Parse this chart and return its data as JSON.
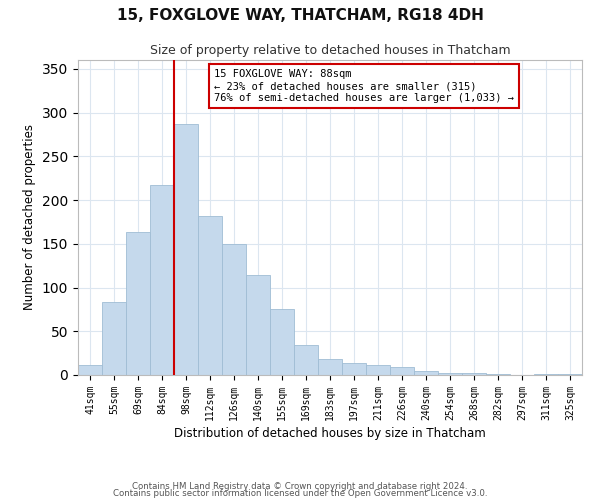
{
  "title": "15, FOXGLOVE WAY, THATCHAM, RG18 4DH",
  "subtitle": "Size of property relative to detached houses in Thatcham",
  "xlabel": "Distribution of detached houses by size in Thatcham",
  "ylabel": "Number of detached properties",
  "bar_labels": [
    "41sqm",
    "55sqm",
    "69sqm",
    "84sqm",
    "98sqm",
    "112sqm",
    "126sqm",
    "140sqm",
    "155sqm",
    "169sqm",
    "183sqm",
    "197sqm",
    "211sqm",
    "226sqm",
    "240sqm",
    "254sqm",
    "268sqm",
    "282sqm",
    "297sqm",
    "311sqm",
    "325sqm"
  ],
  "bar_values": [
    11,
    84,
    164,
    217,
    287,
    182,
    150,
    114,
    75,
    34,
    18,
    14,
    12,
    9,
    5,
    2,
    2,
    1,
    0,
    1,
    1
  ],
  "bar_color": "#c5d9ec",
  "bar_edge_color": "#a0bdd4",
  "vline_x": 3.5,
  "vline_color": "#cc0000",
  "annotation_title": "15 FOXGLOVE WAY: 88sqm",
  "annotation_line1": "← 23% of detached houses are smaller (315)",
  "annotation_line2": "76% of semi-detached houses are larger (1,033) →",
  "annotation_box_color": "#ffffff",
  "annotation_box_edge_color": "#cc0000",
  "ylim": [
    0,
    360
  ],
  "yticks": [
    0,
    50,
    100,
    150,
    200,
    250,
    300,
    350
  ],
  "footnote1": "Contains HM Land Registry data © Crown copyright and database right 2024.",
  "footnote2": "Contains public sector information licensed under the Open Government Licence v3.0.",
  "background_color": "#ffffff",
  "grid_color": "#dce6f0"
}
